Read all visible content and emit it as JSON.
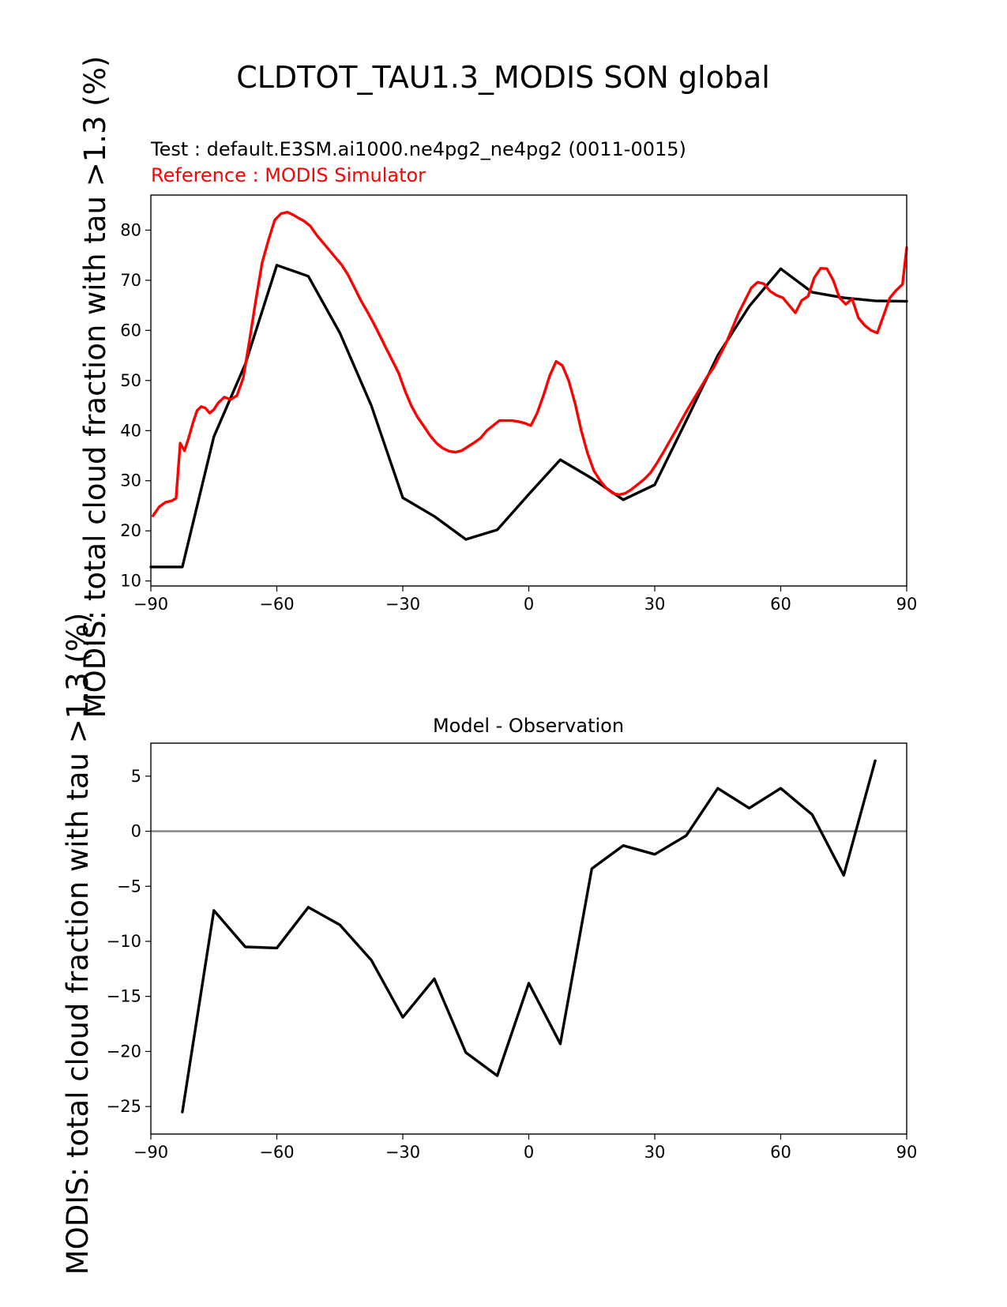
{
  "suptitle": "CLDTOT_TAU1.3_MODIS SON global",
  "ylabel": "MODIS: total cloud fraction with tau >1.3 (%)",
  "chart_data": [
    {
      "type": "line",
      "subtitle_test": "Test : default.E3SM.ai1000.ne4pg2_ne4pg2 (0011-0015)",
      "subtitle_ref": "Reference : MODIS Simulator",
      "xlim": [
        -90,
        90
      ],
      "ylim": [
        9,
        87
      ],
      "xticks": [
        -90,
        -60,
        -30,
        0,
        30,
        60,
        90
      ],
      "xtick_labels": [
        "−90",
        "−60",
        "−30",
        "0",
        "30",
        "60",
        "90"
      ],
      "yticks": [
        10,
        20,
        30,
        40,
        50,
        60,
        70,
        80
      ],
      "ytick_labels": [
        "10",
        "20",
        "30",
        "40",
        "50",
        "60",
        "70",
        "80"
      ],
      "series": [
        {
          "color": "#000000",
          "x": [
            -90,
            -82.5,
            -75,
            -67.5,
            -60,
            -52.5,
            -45,
            -37.5,
            -30,
            -22.5,
            -15,
            -7.5,
            0,
            7.5,
            15,
            22.5,
            30,
            37.5,
            45,
            52.5,
            60,
            67.5,
            75,
            82.5,
            90
          ],
          "y": [
            12.8,
            12.8,
            38.8,
            53.3,
            73.0,
            70.8,
            59.5,
            45.0,
            26.6,
            22.9,
            18.3,
            20.2,
            27.3,
            34.2,
            30.5,
            26.2,
            29.2,
            42.0,
            55.0,
            64.8,
            72.3,
            67.6,
            66.5,
            65.9,
            65.8
          ]
        },
        {
          "color": "#ff0000",
          "x": [
            -89.5,
            -88,
            -86.5,
            -85,
            -84,
            -83,
            -82,
            -81,
            -80,
            -79,
            -78,
            -77,
            -76,
            -75,
            -74,
            -72.5,
            -71,
            -69.5,
            -68,
            -66.5,
            -65,
            -63.5,
            -62,
            -60.5,
            -59,
            -57.5,
            -56,
            -55,
            -53.5,
            -52,
            -50.5,
            -49,
            -47.5,
            -46,
            -44.5,
            -43,
            -41.5,
            -40,
            -38.5,
            -37,
            -35.5,
            -34,
            -32.5,
            -31,
            -29.5,
            -28,
            -26.5,
            -25,
            -23.5,
            -22,
            -20.5,
            -19,
            -17.5,
            -16,
            -14.5,
            -13,
            -11.5,
            -10,
            -8.5,
            -7,
            -5.5,
            -4,
            -2.5,
            -1,
            0.5,
            2,
            3.5,
            5,
            6.5,
            8,
            9.5,
            11,
            12.5,
            14,
            15.5,
            17,
            18.5,
            20,
            21.5,
            23,
            24.5,
            26,
            27.5,
            29,
            30.5,
            32,
            33.5,
            35,
            36.5,
            38,
            39.5,
            41,
            42.5,
            44,
            45.5,
            47,
            48.5,
            50,
            51.5,
            53,
            54.5,
            56,
            57.5,
            59,
            60.5,
            62,
            63.5,
            65,
            66.5,
            68,
            69.5,
            71,
            72.5,
            74,
            75.5,
            77,
            78.5,
            80,
            81.5,
            83,
            84.5,
            86,
            87.5,
            89,
            90
          ],
          "y": [
            23,
            24.8,
            25.7,
            26.0,
            26.5,
            37.5,
            36.0,
            38.5,
            41.5,
            44.0,
            44.8,
            44.5,
            43.5,
            44.2,
            45.5,
            46.7,
            46.2,
            47.0,
            50.5,
            58.0,
            66.0,
            73.5,
            78.0,
            82.0,
            83.3,
            83.6,
            83.0,
            82.5,
            81.8,
            80.8,
            79.0,
            77.5,
            76.0,
            74.5,
            73.0,
            71.0,
            68.5,
            66.0,
            63.8,
            61.5,
            59.0,
            56.5,
            54.0,
            51.5,
            48.0,
            45.0,
            42.7,
            40.9,
            39.0,
            37.5,
            36.5,
            35.9,
            35.7,
            36.0,
            36.8,
            37.6,
            38.5,
            40.0,
            41.0,
            42.0,
            42.0,
            42.0,
            41.8,
            41.5,
            41.0,
            43.5,
            47.0,
            51.0,
            53.8,
            53.0,
            50.0,
            45.5,
            40.0,
            35.5,
            32.0,
            30.0,
            28.5,
            27.5,
            27.2,
            27.5,
            28.3,
            29.3,
            30.3,
            31.6,
            33.5,
            35.6,
            37.8,
            40.0,
            42.3,
            44.5,
            46.6,
            48.7,
            50.8,
            52.5,
            55.0,
            57.5,
            60.5,
            63.5,
            66.0,
            68.5,
            69.6,
            69.3,
            67.8,
            67.0,
            66.5,
            65.0,
            63.5,
            66.0,
            66.8,
            70.5,
            72.4,
            72.3,
            70.0,
            66.5,
            65.2,
            66.3,
            62.5,
            61.0,
            60.0,
            59.5,
            63.0,
            66.5,
            68.0,
            69.2,
            76.5
          ]
        }
      ]
    },
    {
      "type": "line",
      "title": "Model - Observation",
      "xlim": [
        -90,
        90
      ],
      "ylim": [
        -27.5,
        8
      ],
      "xticks": [
        -90,
        -60,
        -30,
        0,
        30,
        60,
        90
      ],
      "xtick_labels": [
        "−90",
        "−60",
        "−30",
        "0",
        "30",
        "60",
        "90"
      ],
      "yticks": [
        5,
        0,
        -5,
        -10,
        -15,
        -20,
        -25
      ],
      "ytick_labels": [
        "5",
        "0",
        "−5",
        "−10",
        "−15",
        "−20",
        "−25"
      ],
      "zero_line_color": "#808080",
      "series": [
        {
          "color": "#000000",
          "x": [
            -82.5,
            -75,
            -67.5,
            -60,
            -52.5,
            -45,
            -37.5,
            -30,
            -22.5,
            -15,
            -7.5,
            0,
            7.5,
            15,
            22.5,
            30,
            37.5,
            45,
            52.5,
            60,
            67.5,
            75,
            82.5
          ],
          "y": [
            -25.5,
            -7.2,
            -10.5,
            -10.6,
            -6.9,
            -8.5,
            -11.7,
            -16.9,
            -13.4,
            -20.1,
            -22.2,
            -13.8,
            -19.3,
            -3.4,
            -1.3,
            -2.1,
            -0.4,
            3.9,
            2.1,
            3.9,
            1.5,
            -4.0,
            6.4
          ]
        }
      ]
    }
  ]
}
